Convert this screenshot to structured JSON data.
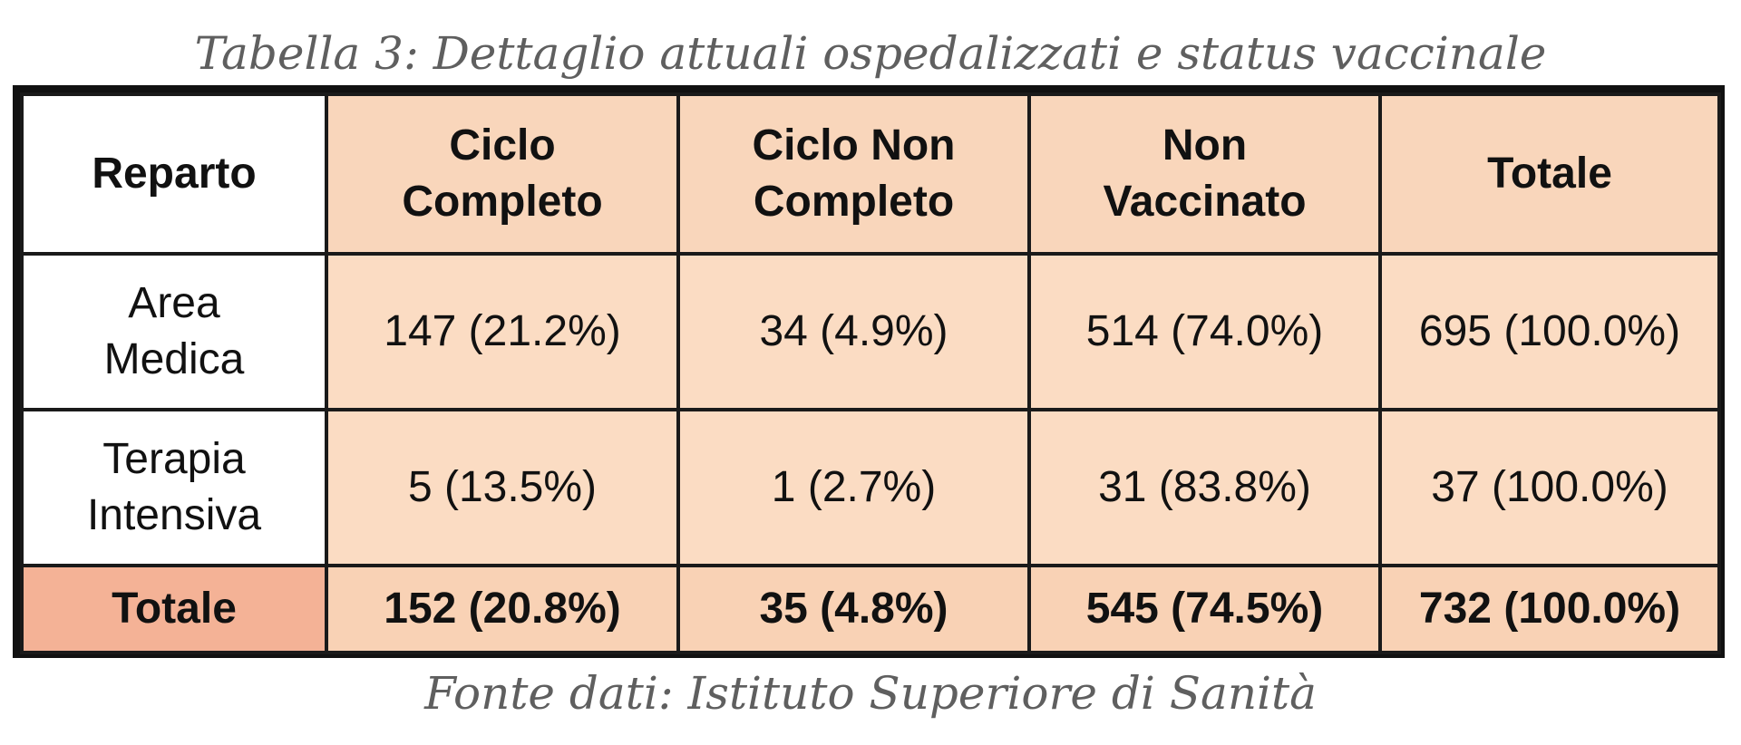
{
  "caption": "Tabella 3: Dettaglio attuali ospedalizzati e status vaccinale",
  "source": "Fonte dati: Istituto Superiore di Sanità",
  "table": {
    "headers": [
      "Reparto",
      "Ciclo\nCompleto",
      "Ciclo Non\nCompleto",
      "Non\nVaccinato",
      "Totale"
    ],
    "rows": [
      {
        "label": "Area\nMedica",
        "cells": [
          "147 (21.2%)",
          "34 (4.9%)",
          "514 (74.0%)",
          "695 (100.0%)"
        ]
      },
      {
        "label": "Terapia\nIntensiva",
        "cells": [
          "5 (13.5%)",
          "1 (2.7%)",
          "31 (83.8%)",
          "37 (100.0%)"
        ]
      }
    ],
    "total": {
      "label": "Totale",
      "cells": [
        "152 (20.8%)",
        "35 (4.8%)",
        "545 (74.5%)",
        "732 (100.0%)"
      ]
    }
  },
  "colors": {
    "header_fill": "#f9d6bb",
    "cell_fill": "#fbdcc3",
    "total_label_fill": "#f4b296",
    "total_fill": "#f9d2b5",
    "border": "#111111",
    "caption_text": "#5f5f5f"
  }
}
